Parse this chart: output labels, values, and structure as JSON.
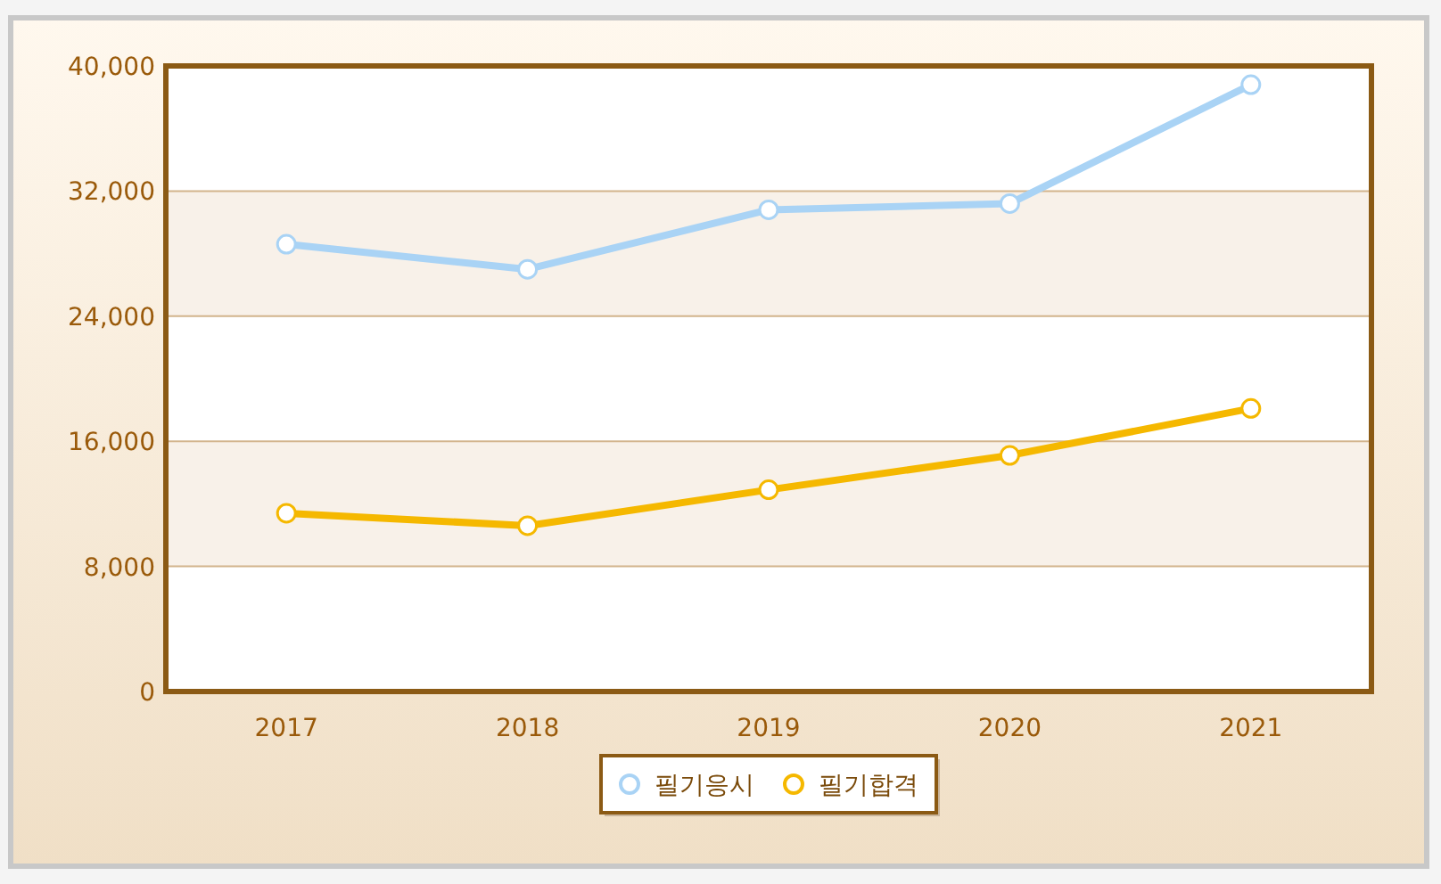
{
  "chart_data": {
    "type": "line",
    "categories": [
      "2017",
      "2018",
      "2019",
      "2020",
      "2021"
    ],
    "series": [
      {
        "name": "필기응시",
        "color": "#a9d3f5",
        "values": [
          28600,
          27000,
          30800,
          31200,
          38800
        ]
      },
      {
        "name": "필기합격",
        "color": "#f5b800",
        "values": [
          11400,
          10600,
          12900,
          15100,
          18100
        ]
      }
    ],
    "ylim": [
      0,
      40000
    ],
    "yticks": [
      {
        "value": 0,
        "label": "0"
      },
      {
        "value": 8000,
        "label": "8,000"
      },
      {
        "value": 16000,
        "label": "16,000"
      },
      {
        "value": 24000,
        "label": "24,000"
      },
      {
        "value": 32000,
        "label": "32,000"
      },
      {
        "value": 40000,
        "label": "40,000"
      }
    ],
    "grid": "y",
    "legend": "bottom",
    "marker": "circle"
  }
}
